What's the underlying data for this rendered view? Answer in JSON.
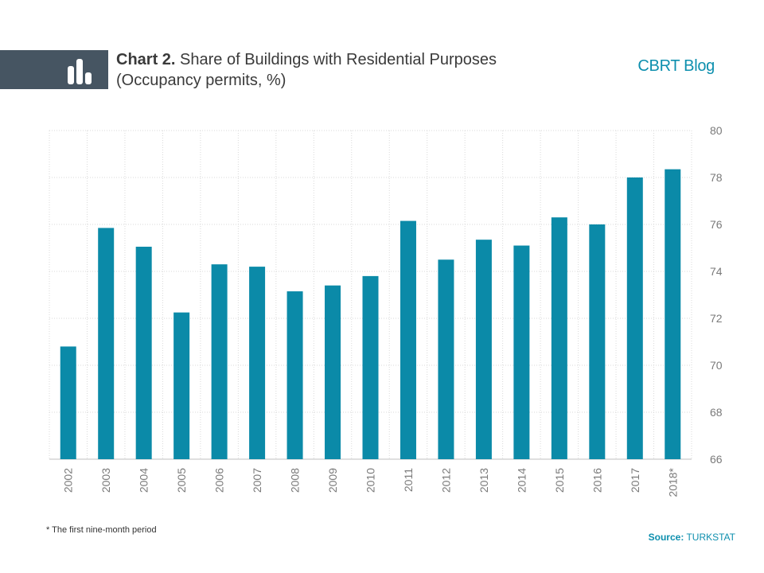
{
  "header": {
    "title_prefix": "Chart 2.",
    "title_rest": " Share of Buildings  with Residential Purposes",
    "subtitle": "(Occupancy permits, %)",
    "brand": "CBRT Blog",
    "icon": "bar-chart-icon"
  },
  "footer": {
    "footnote": "* The first nine-month period",
    "source_label": "Source:",
    "source_value": " TURKSTAT"
  },
  "colors": {
    "bar": "#0b8aa8",
    "header_band": "#465562",
    "brand": "#0d8fae"
  },
  "chart_data": {
    "type": "bar",
    "title": "Chart 2. Share of Buildings  with Residential Purposes",
    "subtitle": "(Occupancy permits, %)",
    "categories": [
      "2002",
      "2003",
      "2004",
      "2005",
      "2006",
      "2007",
      "2008",
      "2009",
      "2010",
      "2011",
      "2012",
      "2013",
      "2014",
      "2015",
      "2016",
      "2017",
      "2018*"
    ],
    "values": [
      70.8,
      75.85,
      75.05,
      72.25,
      74.3,
      74.2,
      73.15,
      73.4,
      73.8,
      76.15,
      74.5,
      75.35,
      75.1,
      76.3,
      76.0,
      78.0,
      78.35
    ],
    "ylim": [
      66,
      80
    ],
    "yticks": [
      "66",
      "68",
      "70",
      "72",
      "74",
      "76",
      "78",
      "80"
    ],
    "y_axis_position": "right",
    "grid": true,
    "legend": "none"
  }
}
